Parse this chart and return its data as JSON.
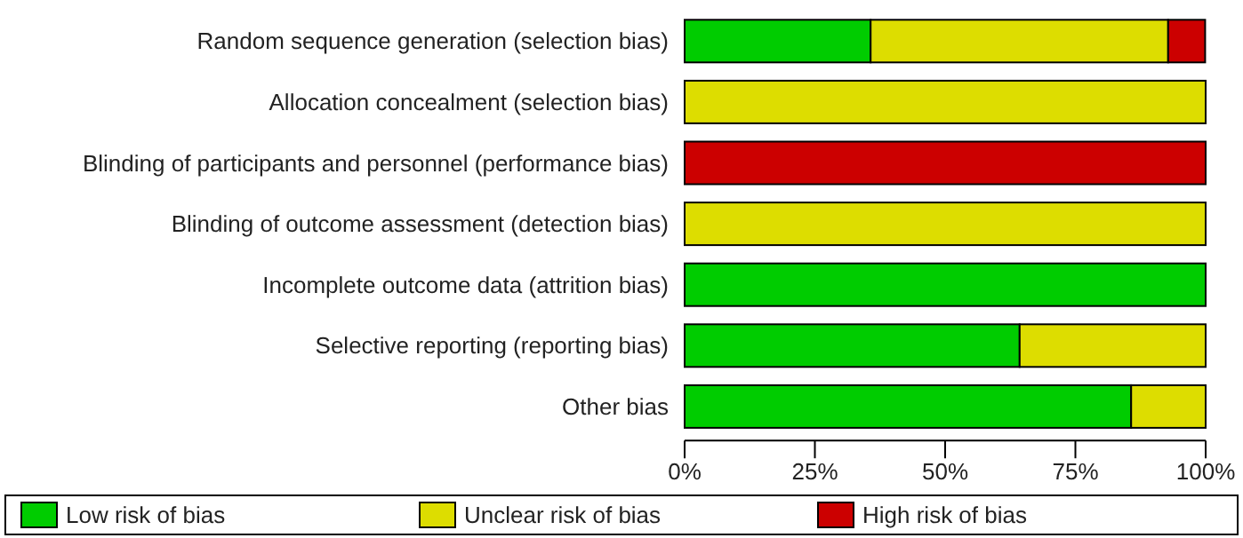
{
  "chart_data": {
    "type": "bar",
    "orientation": "horizontal",
    "stacked": true,
    "categories": [
      "Random sequence generation (selection bias)",
      "Allocation concealment (selection bias)",
      "Blinding of participants and personnel (performance bias)",
      "Blinding of outcome assessment (detection bias)",
      "Incomplete outcome data (attrition bias)",
      "Selective reporting (reporting bias)",
      "Other bias"
    ],
    "series": [
      {
        "name": "Low risk of bias",
        "color": "#00cc00",
        "values": [
          35.7,
          0,
          0,
          0,
          100,
          64.3,
          85.7
        ]
      },
      {
        "name": "Unclear risk of bias",
        "color": "#dddd00",
        "values": [
          57.1,
          100,
          0,
          100,
          0,
          35.7,
          14.3
        ]
      },
      {
        "name": "High risk of bias",
        "color": "#cc0000",
        "values": [
          7.1,
          0,
          100,
          0,
          0,
          0,
          0
        ]
      }
    ],
    "xlim": [
      0,
      100
    ],
    "xticks": [
      {
        "value": 0,
        "label": "0%"
      },
      {
        "value": 25,
        "label": "25%"
      },
      {
        "value": 50,
        "label": "50%"
      },
      {
        "value": 75,
        "label": "75%"
      },
      {
        "value": 100,
        "label": "100%"
      }
    ],
    "grid": false,
    "legend": "bottom"
  }
}
